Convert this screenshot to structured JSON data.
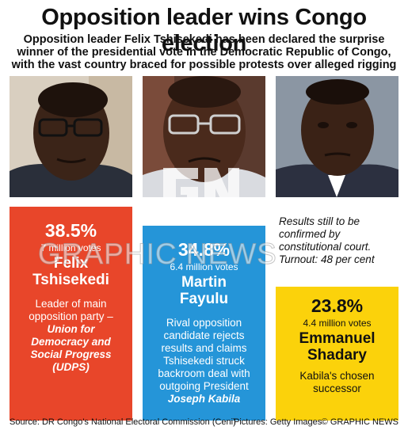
{
  "title": "Opposition leader wins Congo election",
  "subtitle": "Opposition leader Felix Tshisekedi has been declared the surprise winner of the presidential vote in the Democratic Republic of Congo, with the vast country braced for possible protests over alleged rigging",
  "candidates": [
    {
      "percent": "38.5%",
      "votes": "7 million votes",
      "name_line1": "Felix",
      "name_line2": "Tshisekedi",
      "desc_plain": "Leader of main opposition party –",
      "desc_bold": "Union for Democracy and Social Progress (UDPS)",
      "color": "#e8462a"
    },
    {
      "percent": "34.8%",
      "votes": "6.4 million votes",
      "name_line1": "Martin",
      "name_line2": "Fayulu",
      "desc_plain": "Rival opposition candidate rejects results and claims Tshisekedi struck backroom deal with outgoing President",
      "desc_bold": "Joseph Kabila",
      "color": "#2595d8"
    },
    {
      "percent": "23.8%",
      "votes": "4.4 million votes",
      "name_line1": "Emmanuel",
      "name_line2": "Shadary",
      "desc_plain": "Kabila's chosen successor",
      "color": "#fbd20b"
    }
  ],
  "note": "Results still to be confirmed by constitutional court. Turnout: 48 per cent",
  "footer": {
    "source": "Source: DR Congo's National Electoral Commission (Ceni)",
    "pictures": "Pictures: Getty Images",
    "credit": "© GRAPHIC NEWS"
  },
  "watermark": {
    "logo": "GN",
    "text": "GRAPHIC NEWS"
  }
}
